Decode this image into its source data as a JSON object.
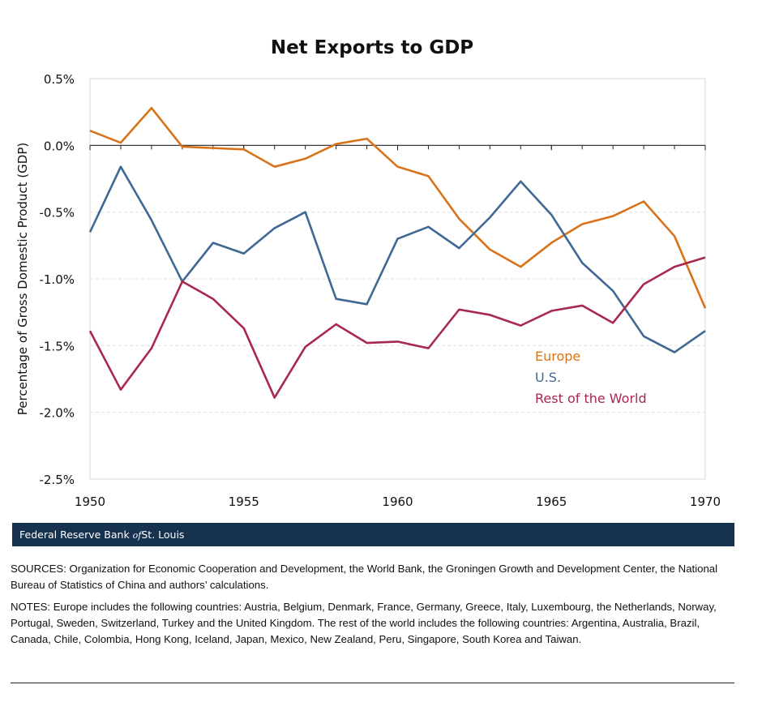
{
  "chart_data": {
    "type": "line",
    "title": "Net Exports to GDP",
    "xlabel": "",
    "ylabel": "Percentage of Gross Domestic Product (GDP)",
    "x": [
      1950,
      1951,
      1952,
      1953,
      1954,
      1955,
      1956,
      1957,
      1958,
      1959,
      1960,
      1961,
      1962,
      1963,
      1964,
      1965,
      1966,
      1967,
      1968,
      1969,
      1970
    ],
    "xticks": [
      "1950",
      "1955",
      "1960",
      "1965",
      "1970"
    ],
    "xlim": [
      1950,
      1970
    ],
    "ylim": [
      -2.5,
      0.5
    ],
    "yticks": [
      "0.5%",
      "0.0%",
      "-0.5%",
      "-1.0%",
      "-1.5%",
      "-2.0%",
      "-2.5%"
    ],
    "grid": true,
    "legend_position": "bottom-right",
    "series": [
      {
        "name": "Europe",
        "color": "#d9731a",
        "values": [
          0.11,
          0.02,
          0.28,
          -0.01,
          -0.02,
          -0.03,
          -0.16,
          -0.1,
          0.01,
          0.05,
          -0.16,
          -0.23,
          -0.55,
          -0.78,
          -0.91,
          -0.73,
          -0.59,
          -0.53,
          -0.42,
          -0.68,
          -1.22
        ]
      },
      {
        "name": "U.S.",
        "color": "#3f6895",
        "values": [
          -0.65,
          -0.16,
          -0.56,
          -1.02,
          -0.73,
          -0.81,
          -0.62,
          -0.5,
          -1.15,
          -1.19,
          -0.7,
          -0.61,
          -0.77,
          -0.54,
          -0.27,
          -0.52,
          -0.88,
          -1.09,
          -1.43,
          -1.55,
          -1.39
        ]
      },
      {
        "name": "Rest of the World",
        "color": "#a8284e",
        "values": [
          -1.39,
          -1.83,
          -1.52,
          -1.02,
          -1.15,
          -1.37,
          -1.89,
          -1.51,
          -1.34,
          -1.48,
          -1.47,
          -1.52,
          -1.23,
          -1.27,
          -1.35,
          -1.24,
          -1.2,
          -1.33,
          -1.04,
          -0.91,
          -0.84
        ]
      }
    ]
  },
  "banner": {
    "pre": "Federal Reserve Bank ",
    "of": "of",
    "post": "St. Louis"
  },
  "sources": "SOURCES: Organization for Economic Cooperation and Development, the World Bank, the Groningen Growth and Development Center, the National Bureau of Statistics of China and authors’ calculations.",
  "notes": "NOTES: Europe includes the following countries: Austria, Belgium, Denmark, France, Germany, Greece, Italy, Luxembourg, the Netherlands, Norway, Portugal, Sweden, Switzerland, Turkey and the United Kingdom. The rest of the world includes the following countries: Argentina, Australia, Brazil, Canada, Chile, Colombia, Hong Kong, Iceland, Japan, Mexico, New Zealand, Peru, Singapore, South Korea and Taiwan."
}
